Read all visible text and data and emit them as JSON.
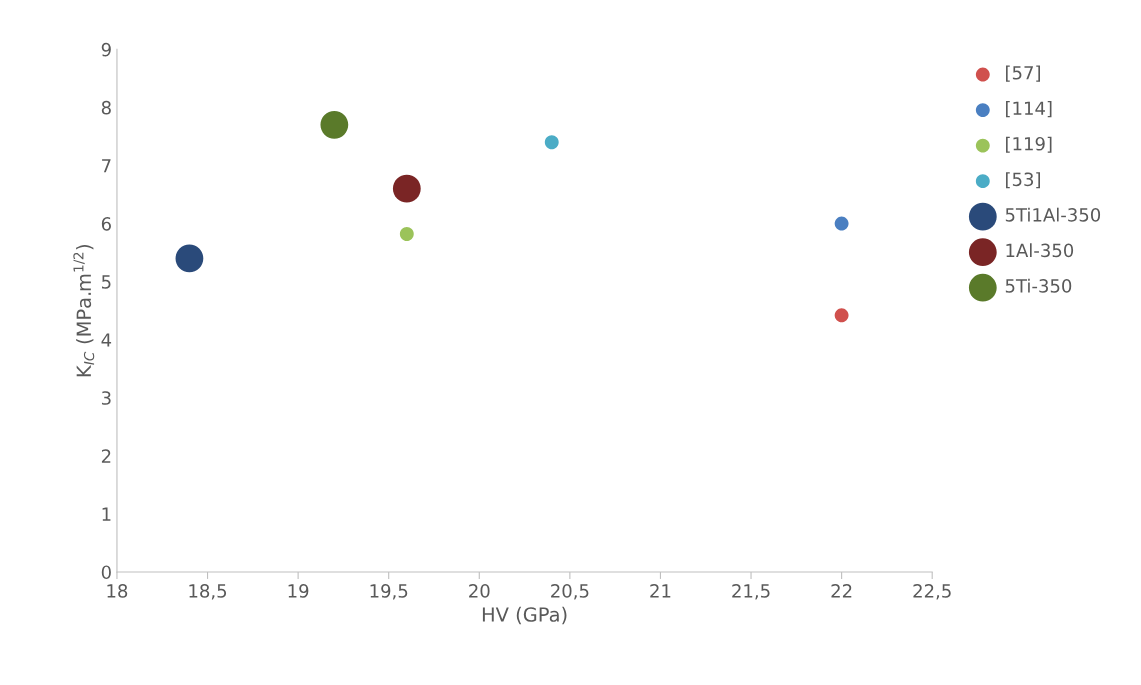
{
  "chart_data": {
    "type": "bubble",
    "xlabel": "HV (GPa)",
    "ylabel": "K$_{IC}$ (MPa.m$^{1/2}$)",
    "xlim": [
      18,
      22.5
    ],
    "xticks": [
      18,
      {
        "value": 18.5,
        "label": "18,5"
      },
      19,
      {
        "value": 19.5,
        "label": "19,5"
      },
      20,
      {
        "value": 20.5,
        "label": "20,5"
      },
      21,
      {
        "value": 21.5,
        "label": "21,5"
      },
      22,
      {
        "value": 22.5,
        "label": "22,5"
      }
    ],
    "ylim": [
      0,
      9
    ],
    "yticks": [
      0,
      1,
      2,
      3,
      4,
      5,
      6,
      7,
      8,
      9
    ],
    "grid": false,
    "legend": "right",
    "marker": "circle",
    "series": [
      {
        "name": "[57]",
        "color": "#d0504d",
        "x": [
          22
        ],
        "values": [
          4.42
        ],
        "sizes": [
          0.25
        ]
      },
      {
        "name": "[114]",
        "color": "#4a7fc1",
        "x": [
          22
        ],
        "values": [
          6.0
        ],
        "sizes": [
          0.25
        ]
      },
      {
        "name": "[119]",
        "color": "#9bc35a",
        "x": [
          19.6
        ],
        "values": [
          5.82
        ],
        "sizes": [
          0.25
        ]
      },
      {
        "name": "[53]",
        "color": "#4bacc6",
        "x": [
          20.4
        ],
        "values": [
          7.4
        ],
        "sizes": [
          0.25
        ]
      },
      {
        "name": "5Ti1Al-350",
        "color": "#2a4a7a",
        "x": [
          18.4
        ],
        "values": [
          5.4
        ],
        "sizes": [
          1
        ]
      },
      {
        "name": "1Al-350",
        "color": "#7a2525",
        "x": [
          19.6
        ],
        "values": [
          6.6
        ],
        "sizes": [
          1
        ]
      },
      {
        "name": "5Ti-350",
        "color": "#5a7a2a",
        "x": [
          19.2
        ],
        "values": [
          7.7
        ],
        "sizes": [
          1
        ]
      }
    ]
  }
}
